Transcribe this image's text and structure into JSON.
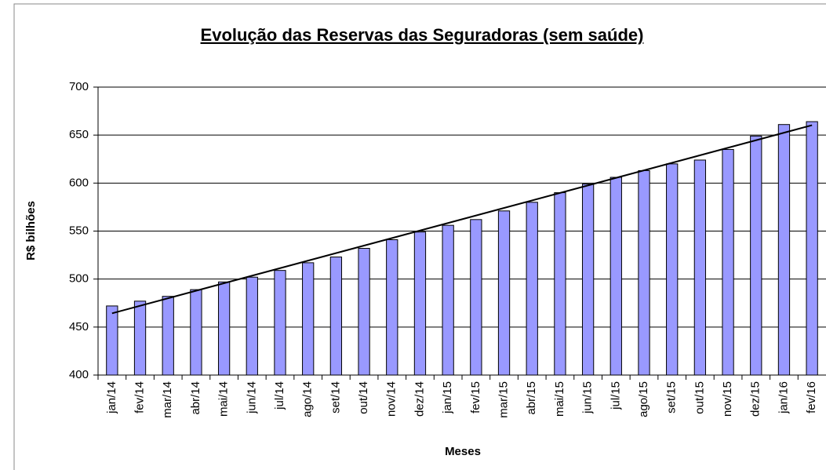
{
  "chart_data": {
    "type": "bar",
    "title": "Evolução das Reservas das Seguradoras (sem saúde)",
    "ylabel": "R$ bilhões",
    "xlabel": "Meses",
    "categories": [
      "jan/14",
      "fev/14",
      "mar/14",
      "abr/14",
      "mai/14",
      "jun/14",
      "jul/14",
      "ago/14",
      "set/14",
      "out/14",
      "nov/14",
      "dez/14",
      "jan/15",
      "fev/15",
      "mar/15",
      "abr/15",
      "mai/15",
      "jun/15",
      "jul/15",
      "ago/15",
      "set/15",
      "out/15",
      "nov/15",
      "dez/15",
      "jan/16",
      "fev/16"
    ],
    "values": [
      472,
      477,
      482,
      489,
      497,
      502,
      509,
      517,
      523,
      532,
      541,
      549,
      556,
      562,
      571,
      580,
      590,
      599,
      606,
      613,
      620,
      624,
      635,
      649,
      661,
      664
    ],
    "color": "#9999ff",
    "ylim": [
      400,
      700
    ],
    "yticks": [
      400,
      450,
      500,
      550,
      600,
      650,
      700
    ],
    "grid": true,
    "trendline": "linear"
  }
}
